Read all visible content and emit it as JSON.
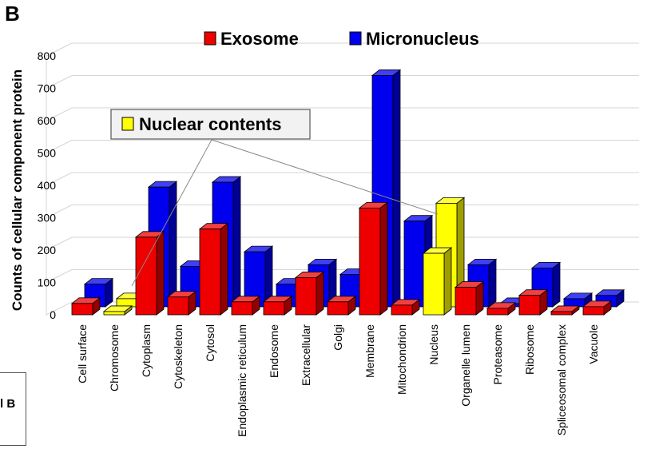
{
  "figure": {
    "panel_label": "B",
    "fragment_label": "l B"
  },
  "chart_data": {
    "type": "bar",
    "style": "3d",
    "ylabel": "Counts of cellular component protein",
    "ylim": [
      0,
      800
    ],
    "yticks": [
      0,
      100,
      200,
      300,
      400,
      500,
      600,
      700,
      800
    ],
    "grid": true,
    "legend_placement": "top-center",
    "categories": [
      "Cell surface",
      "Chromosome",
      "Cytoplasm",
      "Cytoskeleton",
      "Cytosol",
      "Endoplasmic reticulum",
      "Endosome",
      "Extracellular",
      "Golgi",
      "Membrane",
      "Mitochondrion",
      "Nucleus",
      "Organelle lumen",
      "Proteasome",
      "Ribosome",
      "Spliceosomal complex",
      "Vacuole"
    ],
    "series": [
      {
        "name": "Exosome",
        "color": "#ee0000",
        "values": [
          35,
          0,
          240,
          55,
          265,
          40,
          40,
          115,
          40,
          330,
          30,
          0,
          85,
          20,
          60,
          10,
          25
        ]
      },
      {
        "name": "Micronucleus",
        "color": "#0000ee",
        "values": [
          70,
          0,
          370,
          125,
          385,
          170,
          70,
          130,
          100,
          715,
          265,
          0,
          130,
          10,
          120,
          25,
          35
        ]
      },
      {
        "name": "Nuclear contents",
        "color": "#ffff00",
        "values": [
          0,
          25,
          0,
          0,
          0,
          0,
          0,
          0,
          0,
          0,
          0,
          320,
          0,
          0,
          0,
          0,
          0
        ]
      }
    ],
    "nuclear_values": {
      "Chromosome_front": 10,
      "Chromosome_back": 25,
      "Nucleus_front": 190,
      "Nucleus_back": 320
    },
    "annotation": "Nuclear contents"
  }
}
